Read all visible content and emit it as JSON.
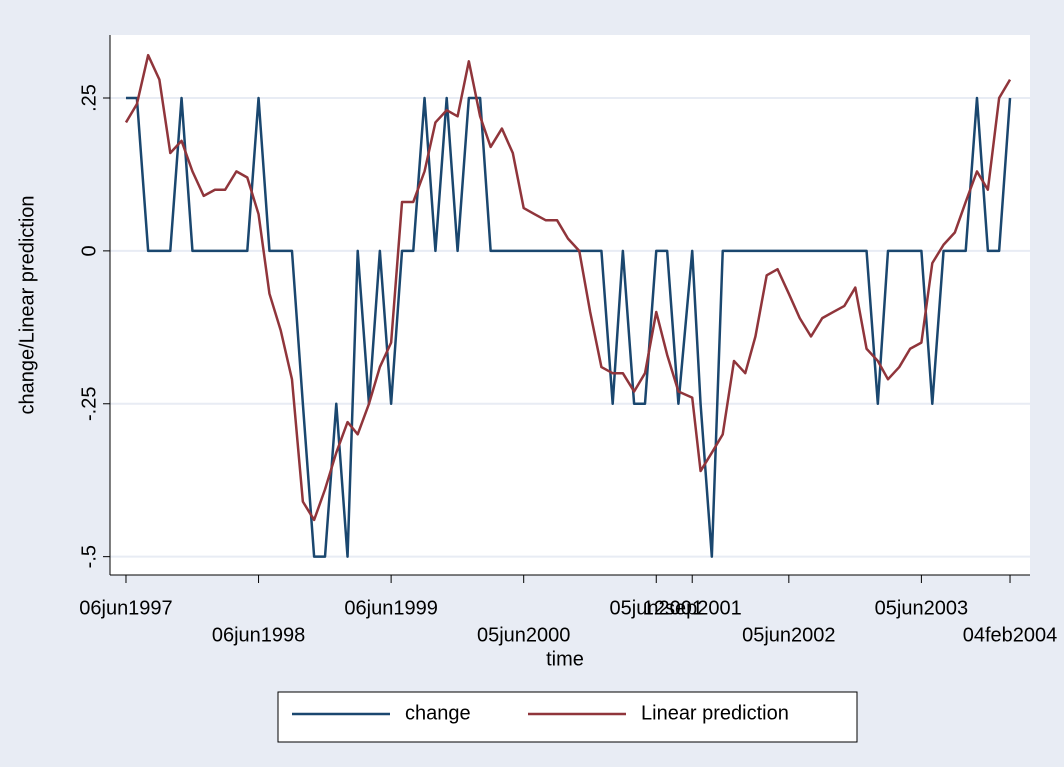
{
  "chart_data": {
    "type": "line",
    "x_label": "time",
    "y_label": "change/Linear prediction",
    "x": [
      "1997-06-06",
      "1997-07-06",
      "1997-08-06",
      "1997-09-06",
      "1997-10-06",
      "1997-11-06",
      "1997-12-06",
      "1998-01-06",
      "1998-02-06",
      "1998-03-06",
      "1998-04-06",
      "1998-05-06",
      "1998-06-06",
      "1998-07-06",
      "1998-08-06",
      "1998-09-06",
      "1998-10-06",
      "1998-11-06",
      "1998-12-06",
      "1999-01-06",
      "1999-02-06",
      "1999-03-06",
      "1999-04-06",
      "1999-05-06",
      "1999-06-06",
      "1999-07-06",
      "1999-08-06",
      "1999-09-06",
      "1999-10-06",
      "1999-11-06",
      "1999-12-06",
      "2000-01-06",
      "2000-02-06",
      "2000-03-06",
      "2000-04-06",
      "2000-05-06",
      "2000-06-05",
      "2000-07-05",
      "2000-08-05",
      "2000-09-05",
      "2000-10-05",
      "2000-11-05",
      "2000-12-05",
      "2001-01-05",
      "2001-02-05",
      "2001-03-05",
      "2001-04-05",
      "2001-05-05",
      "2001-06-05",
      "2001-07-05",
      "2001-08-05",
      "2001-09-12",
      "2001-10-05",
      "2001-11-05",
      "2001-12-05",
      "2002-01-05",
      "2002-02-05",
      "2002-03-05",
      "2002-04-05",
      "2002-05-05",
      "2002-06-05",
      "2002-07-05",
      "2002-08-05",
      "2002-09-05",
      "2002-10-05",
      "2002-11-05",
      "2002-12-05",
      "2003-01-05",
      "2003-02-05",
      "2003-03-05",
      "2003-04-05",
      "2003-05-05",
      "2003-06-05",
      "2003-07-05",
      "2003-08-05",
      "2003-09-05",
      "2003-10-05",
      "2003-11-05",
      "2003-12-05",
      "2004-01-05",
      "2004-02-04"
    ],
    "series": [
      {
        "name": "change",
        "color": "#1a476f",
        "values": [
          0.25,
          0.25,
          0,
          0,
          0,
          0.25,
          0,
          0,
          0,
          0,
          0,
          0,
          0.25,
          0,
          0,
          0,
          -0.25,
          -0.5,
          -0.5,
          -0.25,
          -0.5,
          0,
          -0.25,
          0,
          -0.25,
          0,
          0,
          0.25,
          0,
          0.25,
          0,
          0.25,
          0.25,
          0,
          0,
          0,
          0,
          0,
          0,
          0,
          0,
          0,
          0,
          0,
          -0.25,
          0,
          -0.25,
          -0.25,
          0,
          0,
          -0.25,
          0,
          -0.25,
          -0.5,
          0,
          0,
          0,
          0,
          0,
          0,
          0,
          0,
          0,
          0,
          0,
          0,
          0,
          0,
          -0.25,
          0,
          0,
          0,
          0,
          -0.25,
          0,
          0,
          0,
          0.25,
          0,
          0,
          0.25
        ]
      },
      {
        "name": "Linear prediction",
        "color": "#90353b",
        "values": [
          0.21,
          0.24,
          0.32,
          0.28,
          0.16,
          0.18,
          0.13,
          0.09,
          0.1,
          0.1,
          0.13,
          0.12,
          0.06,
          -0.07,
          -0.13,
          -0.21,
          -0.41,
          -0.44,
          -0.39,
          -0.33,
          -0.28,
          -0.3,
          -0.25,
          -0.19,
          -0.15,
          0.08,
          0.08,
          0.13,
          0.21,
          0.23,
          0.22,
          0.31,
          0.22,
          0.17,
          0.2,
          0.16,
          0.07,
          0.06,
          0.05,
          0.05,
          0.02,
          0,
          -0.1,
          -0.19,
          -0.2,
          -0.2,
          -0.23,
          -0.2,
          -0.1,
          -0.17,
          -0.23,
          -0.24,
          -0.36,
          -0.33,
          -0.3,
          -0.18,
          -0.2,
          -0.14,
          -0.04,
          -0.03,
          -0.07,
          -0.11,
          -0.14,
          -0.11,
          -0.1,
          -0.09,
          -0.06,
          -0.16,
          -0.18,
          -0.21,
          -0.19,
          -0.16,
          -0.15,
          -0.02,
          0.01,
          0.03,
          0.08,
          0.13,
          0.1,
          0.25,
          0.28
        ]
      }
    ],
    "xlim": [
      "1997-04-23",
      "2004-03-30"
    ],
    "xticks": [
      {
        "value": "1997-06-06",
        "label": "06jun1997"
      },
      {
        "value": "1998-06-06",
        "label": "06jun1998"
      },
      {
        "value": "1999-06-06",
        "label": "06jun1999"
      },
      {
        "value": "2000-06-05",
        "label": "05jun2000"
      },
      {
        "value": "2001-06-05",
        "label": "05jun2001"
      },
      {
        "value": "2001-09-12",
        "label": "12sep2001"
      },
      {
        "value": "2002-06-05",
        "label": "05jun2002"
      },
      {
        "value": "2003-06-05",
        "label": "05jun2003"
      },
      {
        "value": "2004-02-04",
        "label": "04feb2004"
      }
    ],
    "ylim": [
      -0.53,
      0.353
    ],
    "yticks": [
      {
        "value": -0.5,
        "label": "-.5"
      },
      {
        "value": -0.25,
        "label": "-.25"
      },
      0,
      {
        "value": 0.25,
        "label": ".25"
      }
    ],
    "grid": true,
    "legend": "bottom"
  }
}
